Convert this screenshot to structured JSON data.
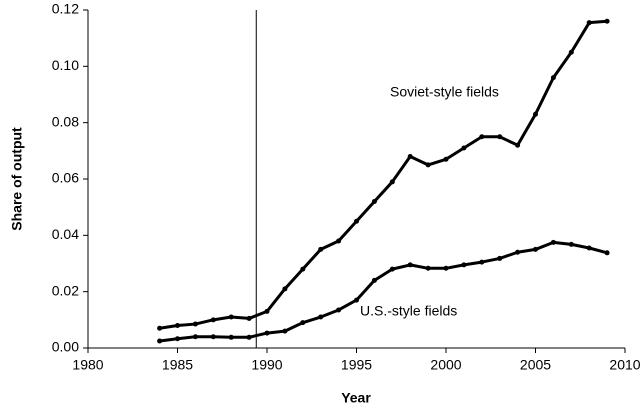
{
  "chart_data": {
    "type": "line",
    "x_label": "Year",
    "y_label": "Share of output",
    "x": [
      1984,
      1985,
      1986,
      1987,
      1988,
      1989,
      1990,
      1991,
      1992,
      1993,
      1994,
      1995,
      1996,
      1997,
      1998,
      1999,
      2000,
      2001,
      2002,
      2003,
      2004,
      2005,
      2006,
      2007,
      2008,
      2009
    ],
    "series": [
      {
        "name": "Soviet-style fields",
        "color": "#000000",
        "values": [
          0.007,
          0.008,
          0.0085,
          0.01,
          0.011,
          0.0105,
          0.013,
          0.021,
          0.028,
          0.035,
          0.038,
          0.045,
          0.052,
          0.059,
          0.068,
          0.065,
          0.067,
          0.071,
          0.075,
          0.075,
          0.072,
          0.083,
          0.096,
          0.105,
          0.1155,
          0.116
        ]
      },
      {
        "name": "U.S.-style fields",
        "color": "#000000",
        "values": [
          0.0025,
          0.0033,
          0.004,
          0.004,
          0.0038,
          0.0038,
          0.0053,
          0.006,
          0.009,
          0.011,
          0.0135,
          0.017,
          0.024,
          0.028,
          0.0295,
          0.0283,
          0.0283,
          0.0295,
          0.0305,
          0.0318,
          0.034,
          0.035,
          0.0375,
          0.0368,
          0.0355,
          0.0338
        ]
      }
    ],
    "vline": 1989.4,
    "xlim": [
      1980,
      2010
    ],
    "xticks": [
      1980,
      1985,
      1990,
      1995,
      2000,
      2005,
      2010
    ],
    "ylim": [
      0,
      0.12
    ],
    "yticks": [
      {
        "value": 0,
        "label": "0.00"
      },
      {
        "value": 0.02,
        "label": "0.02"
      },
      {
        "value": 0.04,
        "label": "0.04"
      },
      {
        "value": 0.06,
        "label": "0.06"
      },
      {
        "value": 0.08,
        "label": "0.08"
      },
      {
        "value": 0.1,
        "label": "0.10"
      },
      {
        "value": 0.12,
        "label": "0.12"
      }
    ],
    "grid": false
  }
}
